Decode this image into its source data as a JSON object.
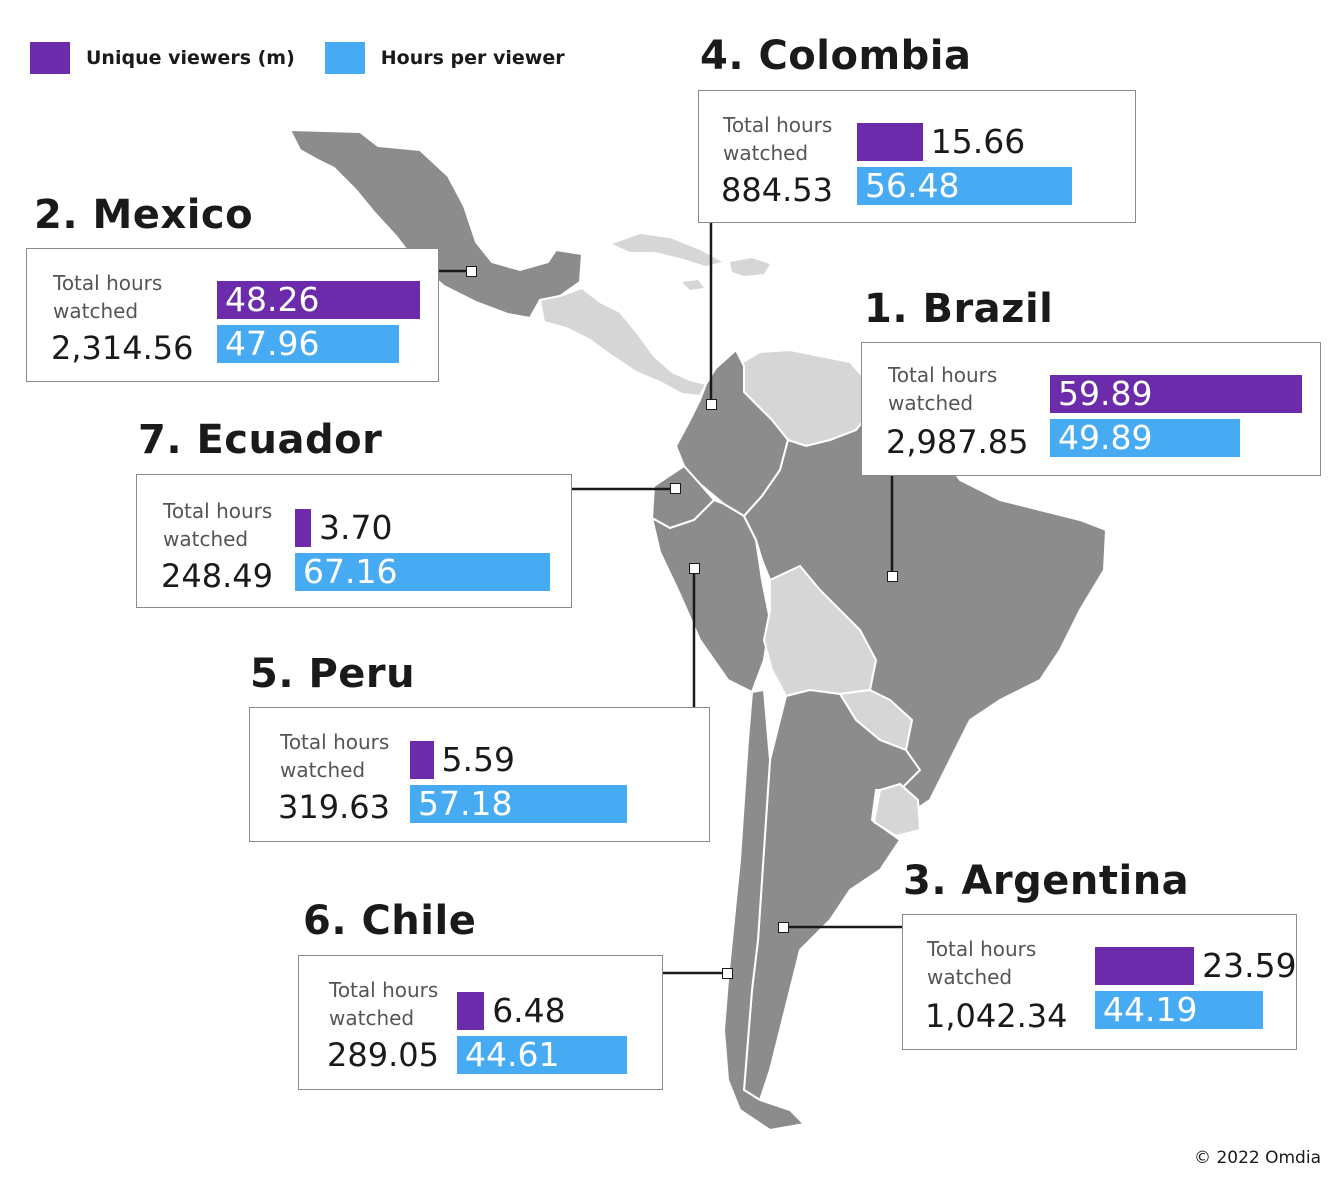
{
  "legend": {
    "unique_viewers": {
      "label": "Unique viewers (m)",
      "color": "#6c2bab"
    },
    "hours_per_viewer": {
      "label": "Hours per viewer",
      "color": "#47abf3"
    }
  },
  "map_colors": {
    "highlighted": "#8c8c8c",
    "other": "#d6d6d6",
    "border": "#ffffff"
  },
  "total_hours_label": "Total hours\nwatched",
  "countries": [
    {
      "key": "brazil",
      "title": "1. Brazil",
      "total_hours": "2,987.85",
      "unique_viewers": "59.89",
      "hours_per_viewer": "49.89"
    },
    {
      "key": "mexico",
      "title": "2. Mexico",
      "total_hours": "2,314.56",
      "unique_viewers": "48.26",
      "hours_per_viewer": "47.96"
    },
    {
      "key": "argentina",
      "title": "3. Argentina",
      "total_hours": "1,042.34",
      "unique_viewers": "23.59",
      "hours_per_viewer": "44.19"
    },
    {
      "key": "colombia",
      "title": "4. Colombia",
      "total_hours": "884.53",
      "unique_viewers": "15.66",
      "hours_per_viewer": "56.48"
    },
    {
      "key": "peru",
      "title": "5. Peru",
      "total_hours": "319.63",
      "unique_viewers": "5.59",
      "hours_per_viewer": "57.18"
    },
    {
      "key": "chile",
      "title": "6. Chile",
      "total_hours": "289.05",
      "unique_viewers": "6.48",
      "hours_per_viewer": "44.61"
    },
    {
      "key": "ecuador",
      "title": "7. Ecuador",
      "total_hours": "248.49",
      "unique_viewers": "3.70",
      "hours_per_viewer": "67.16"
    }
  ],
  "copyright": "© 2022 Omdia"
}
